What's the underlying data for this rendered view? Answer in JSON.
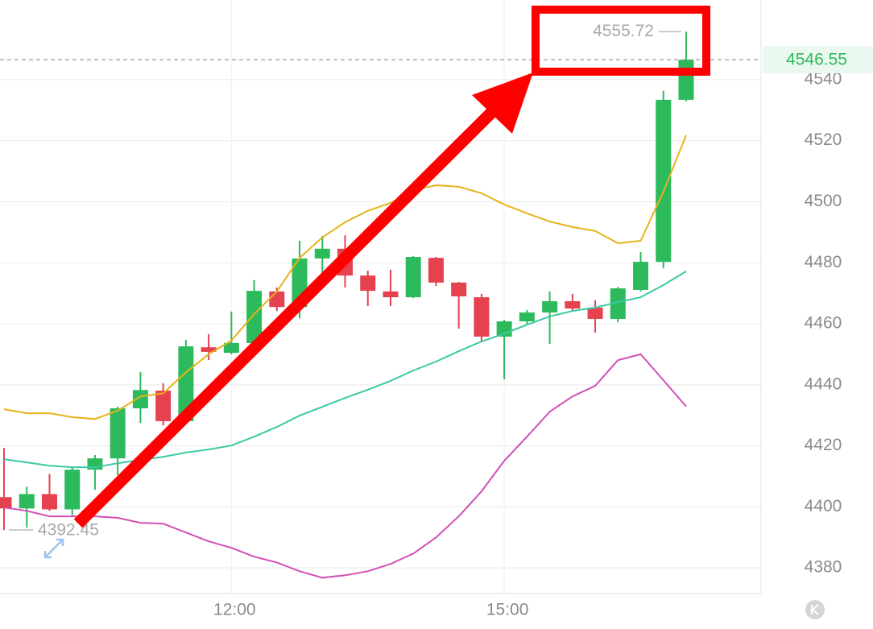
{
  "chart_data": {
    "type": "candlestick",
    "categories": [
      null,
      null,
      null,
      null,
      null,
      null,
      null,
      null,
      null,
      null,
      "12:00",
      null,
      null,
      null,
      null,
      null,
      null,
      null,
      null,
      null,
      null,
      null,
      "15:00",
      null,
      null,
      null,
      null,
      null,
      null,
      null,
      null
    ],
    "open": [
      4403.2,
      4399.5,
      4404.2,
      4399.2,
      4412.2,
      4415.9,
      4432.3,
      4438.1,
      4428.1,
      4452.3,
      4450.5,
      4453.7,
      4470.6,
      4465.5,
      4481.4,
      4484.6,
      4475.8,
      4470.6,
      4468.7,
      4481.6,
      4473.5,
      4468.7,
      4455.8,
      4460.8,
      4463.7,
      4467.4,
      4465.3,
      4461.6,
      4471.1,
      4480.3,
      4533.4
    ],
    "high": [
      4419.3,
      4406.6,
      4410.8,
      4413.0,
      4417.0,
      4432.8,
      4444.2,
      4440.5,
      4454.7,
      4456.6,
      4464.0,
      4474.3,
      4471.9,
      4487.2,
      4488.8,
      4489.0,
      4477.4,
      4477.7,
      4482.2,
      4481.9,
      4473.7,
      4469.8,
      4461.3,
      4464.5,
      4470.6,
      4469.8,
      4467.7,
      4472.1,
      4483.5,
      4536.3,
      4555.72
    ],
    "low": [
      4392.45,
      4393.2,
      4398.7,
      4397.2,
      4405.6,
      4410.4,
      4427.5,
      4426.7,
      4427.3,
      4448.1,
      4450.0,
      4453.4,
      4464.2,
      4461.8,
      4475.0,
      4471.9,
      4465.8,
      4465.8,
      4468.4,
      4472.4,
      4458.4,
      4453.9,
      4441.8,
      4460.0,
      4453.4,
      4464.0,
      4457.1,
      4460.5,
      4470.6,
      4478.2,
      4532.9
    ],
    "close": [
      4399.5,
      4404.2,
      4399.2,
      4412.2,
      4415.9,
      4432.3,
      4438.3,
      4428.1,
      4452.6,
      4450.8,
      4453.7,
      4470.8,
      4465.5,
      4481.4,
      4484.6,
      4475.8,
      4470.8,
      4468.7,
      4481.9,
      4473.5,
      4469.0,
      4455.8,
      4460.8,
      4463.7,
      4467.4,
      4465.0,
      4461.6,
      4471.6,
      4480.3,
      4533.4,
      4546.55
    ],
    "up_color": "#2dba5c",
    "down_color": "#e5414f",
    "lines": [
      {
        "color": "#e8b219",
        "values": [
          4432.0,
          4430.7,
          4430.7,
          4429.4,
          4428.8,
          4431.5,
          4436.2,
          4437.2,
          4444.1,
          4450.0,
          4454.5,
          4463.2,
          4470.6,
          4481.6,
          4488.3,
          4493.3,
          4497.0,
          4499.6,
          4503.8,
          4505.4,
          4504.9,
          4502.8,
          4499.1,
          4496.2,
          4493.5,
          4491.7,
          4490.4,
          4486.4,
          4487.2,
          4503.3,
          4521.8
        ]
      },
      {
        "color": "#3cc9a5",
        "values": [
          4415.6,
          4414.6,
          4413.5,
          4413.0,
          4413.0,
          4414.3,
          4415.4,
          4416.4,
          4417.8,
          4418.8,
          4420.1,
          4423.0,
          4426.2,
          4429.9,
          4432.8,
          4435.7,
          4438.4,
          4441.3,
          4444.7,
          4447.6,
          4451.0,
          4454.2,
          4456.8,
          4459.7,
          4462.4,
          4464.2,
          4465.3,
          4467.1,
          4468.7,
          4472.7,
          4477.2
        ]
      },
      {
        "color": "#d24fb5",
        "values": [
          4399.8,
          4398.7,
          4396.9,
          4396.9,
          4396.9,
          4396.4,
          4394.8,
          4394.5,
          4391.6,
          4388.7,
          4386.6,
          4383.7,
          4381.8,
          4378.9,
          4376.8,
          4377.6,
          4378.9,
          4381.3,
          4384.7,
          4390.0,
          4396.9,
          4405.1,
          4415.1,
          4423.0,
          4431.2,
          4436.2,
          4439.7,
          4448.1,
          4450.0,
          4441.5,
          4432.9
        ]
      }
    ],
    "ylim": [
      4371.6,
      4566.1
    ],
    "yticks": [
      4380,
      4400,
      4420,
      4440,
      4460,
      4480,
      4500,
      4520,
      4540
    ],
    "grid": true
  }
}
